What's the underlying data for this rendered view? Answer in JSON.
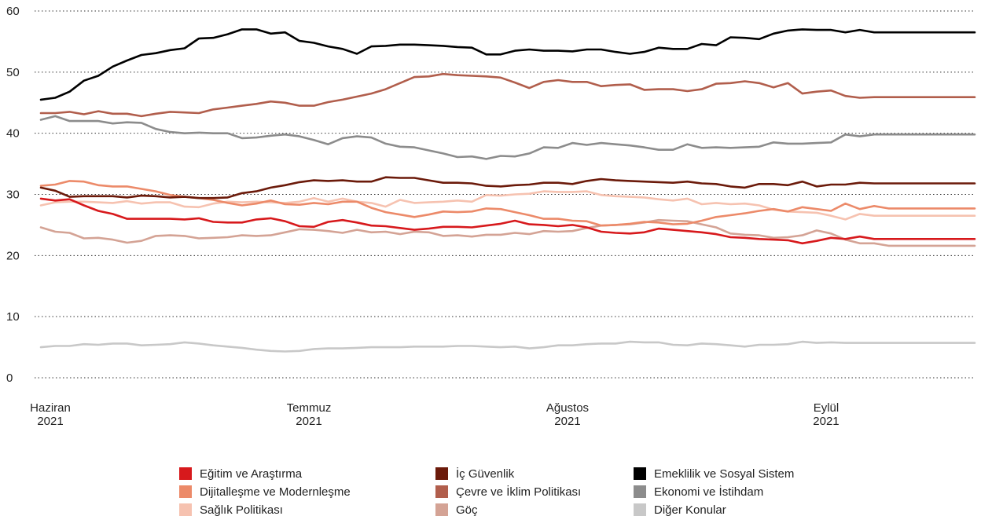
{
  "chart_data": {
    "type": "line",
    "title": "",
    "xlabel": "",
    "ylabel": "",
    "ylim": [
      0,
      60
    ],
    "yticks": [
      0,
      10,
      20,
      30,
      40,
      50,
      60
    ],
    "grid": "horizontal dotted",
    "legend_position": "bottom",
    "x_count": 66,
    "x_tick_labels": [
      {
        "index": 0,
        "line1": "Haziran",
        "line2": "2021"
      },
      {
        "index": 18,
        "line1": "Temmuz",
        "line2": "2021"
      },
      {
        "index": 36,
        "line1": "Ağustos",
        "line2": "2021"
      },
      {
        "index": 54,
        "line1": "Eylül",
        "line2": "2021"
      }
    ],
    "series": [
      {
        "name": "Eğitim ve Araştırma",
        "color": "#d7191c",
        "values": [
          29.3,
          29.0,
          29.2,
          28.2,
          27.3,
          26.8,
          26.0,
          26.0,
          26.0,
          26.0,
          25.9,
          26.1,
          25.5,
          25.4,
          25.4,
          25.9,
          26.1,
          25.6,
          24.8,
          24.7,
          25.5,
          25.8,
          25.4,
          24.9,
          24.8,
          24.5,
          24.2,
          24.4,
          24.7,
          24.7,
          24.6,
          24.9,
          25.2,
          25.7,
          25.1,
          25.0,
          24.8,
          25.0,
          24.6,
          23.9,
          23.7,
          23.6,
          23.8,
          24.4,
          24.2,
          24.0,
          23.8,
          23.5,
          23.0,
          22.9,
          22.7,
          22.6,
          22.5,
          22.0,
          22.4,
          22.9,
          22.7,
          23.1,
          22.7,
          22.7,
          22.7,
          22.7,
          22.7,
          22.7,
          22.7,
          22.7
        ]
      },
      {
        "name": "İç Güvenlik",
        "color": "#6b1a0a",
        "values": [
          31.1,
          30.6,
          29.6,
          29.7,
          29.7,
          29.7,
          29.5,
          29.8,
          29.7,
          29.5,
          29.6,
          29.4,
          29.4,
          29.5,
          30.2,
          30.5,
          31.1,
          31.5,
          32.0,
          32.3,
          32.2,
          32.3,
          32.1,
          32.1,
          32.8,
          32.7,
          32.7,
          32.3,
          31.9,
          31.9,
          31.8,
          31.4,
          31.3,
          31.5,
          31.6,
          31.9,
          31.9,
          31.7,
          32.2,
          32.5,
          32.3,
          32.2,
          32.1,
          32.0,
          31.9,
          32.1,
          31.8,
          31.7,
          31.3,
          31.1,
          31.7,
          31.7,
          31.5,
          32.1,
          31.3,
          31.6,
          31.6,
          31.9,
          31.8,
          31.8,
          31.8,
          31.8,
          31.8,
          31.8,
          31.8,
          31.8
        ]
      },
      {
        "name": "Emeklilik ve Sosyal Sistem",
        "color": "#000000",
        "values": [
          45.5,
          45.8,
          46.8,
          48.6,
          49.4,
          50.9,
          51.9,
          52.8,
          53.1,
          53.6,
          53.9,
          55.5,
          55.6,
          56.2,
          57.0,
          57.0,
          56.3,
          56.5,
          55.1,
          54.8,
          54.2,
          53.8,
          53.0,
          54.2,
          54.3,
          54.5,
          54.5,
          54.4,
          54.3,
          54.1,
          54.0,
          52.9,
          52.9,
          53.5,
          53.7,
          53.5,
          53.5,
          53.4,
          53.7,
          53.7,
          53.3,
          53.0,
          53.3,
          54.0,
          53.8,
          53.8,
          54.6,
          54.4,
          55.7,
          55.6,
          55.4,
          56.3,
          56.8,
          57.0,
          56.9,
          56.9,
          56.5,
          56.9,
          56.5,
          56.5,
          56.5,
          56.5,
          56.5,
          56.5,
          56.5,
          56.5
        ]
      },
      {
        "name": "Dijitalleşme ve Modernleşme",
        "color": "#ec8a69",
        "values": [
          31.4,
          31.6,
          32.2,
          32.1,
          31.5,
          31.3,
          31.3,
          30.9,
          30.5,
          29.9,
          29.6,
          29.4,
          29.1,
          28.6,
          28.2,
          28.5,
          29.0,
          28.4,
          28.3,
          28.6,
          28.4,
          28.8,
          28.8,
          27.8,
          27.1,
          26.7,
          26.3,
          26.7,
          27.2,
          27.1,
          27.2,
          27.7,
          27.6,
          27.1,
          26.6,
          26.0,
          26.0,
          25.7,
          25.6,
          24.9,
          25.0,
          25.2,
          25.5,
          25.4,
          25.1,
          25.2,
          25.7,
          26.3,
          26.6,
          26.9,
          27.3,
          27.6,
          27.2,
          27.9,
          27.6,
          27.3,
          28.5,
          27.6,
          28.1,
          27.7,
          27.7,
          27.7,
          27.7,
          27.7,
          27.7,
          27.7
        ]
      },
      {
        "name": "Çevre ve İklim Politikası",
        "color": "#b15e4c",
        "values": [
          43.3,
          43.3,
          43.5,
          43.1,
          43.6,
          43.2,
          43.2,
          42.8,
          43.2,
          43.5,
          43.4,
          43.3,
          43.9,
          44.2,
          44.5,
          44.8,
          45.2,
          45.0,
          44.5,
          44.5,
          45.1,
          45.5,
          46.0,
          46.5,
          47.2,
          48.2,
          49.2,
          49.3,
          49.7,
          49.5,
          49.4,
          49.3,
          49.1,
          48.3,
          47.4,
          48.4,
          48.7,
          48.4,
          48.4,
          47.7,
          47.9,
          48.0,
          47.1,
          47.2,
          47.2,
          46.9,
          47.2,
          48.1,
          48.2,
          48.5,
          48.2,
          47.5,
          48.2,
          46.5,
          46.8,
          47.0,
          46.1,
          45.8,
          45.9,
          45.9,
          45.9,
          45.9,
          45.9,
          45.9,
          45.9,
          45.9
        ]
      },
      {
        "name": "Ekonomi ve İstihdam",
        "color": "#8c8c8c",
        "values": [
          42.2,
          42.8,
          42.0,
          42.0,
          42.0,
          41.6,
          41.8,
          41.7,
          40.7,
          40.2,
          40.0,
          40.1,
          40.0,
          40.0,
          39.2,
          39.3,
          39.6,
          39.8,
          39.5,
          38.9,
          38.2,
          39.2,
          39.5,
          39.3,
          38.3,
          37.8,
          37.7,
          37.2,
          36.7,
          36.1,
          36.2,
          35.8,
          36.3,
          36.2,
          36.7,
          37.7,
          37.6,
          38.4,
          38.1,
          38.4,
          38.2,
          38.0,
          37.7,
          37.3,
          37.3,
          38.2,
          37.6,
          37.7,
          37.6,
          37.7,
          37.8,
          38.5,
          38.3,
          38.3,
          38.4,
          38.5,
          39.8,
          39.5,
          39.8,
          39.8,
          39.8,
          39.8,
          39.8,
          39.8,
          39.8,
          39.8
        ]
      },
      {
        "name": "Sağlık Politikası",
        "color": "#f6c2b0",
        "values": [
          28.2,
          28.7,
          28.8,
          28.8,
          28.7,
          28.6,
          28.9,
          28.5,
          28.7,
          28.7,
          28.0,
          27.9,
          28.5,
          28.8,
          28.7,
          28.8,
          28.7,
          28.6,
          28.8,
          29.4,
          28.8,
          29.3,
          28.8,
          28.6,
          28.0,
          29.1,
          28.6,
          28.7,
          28.8,
          29.0,
          28.8,
          29.9,
          29.8,
          30.0,
          30.1,
          30.5,
          30.4,
          30.4,
          30.5,
          29.9,
          29.7,
          29.6,
          29.5,
          29.2,
          29.0,
          29.3,
          28.4,
          28.6,
          28.4,
          28.5,
          28.2,
          27.5,
          27.2,
          27.1,
          27.0,
          26.5,
          25.9,
          26.8,
          26.5,
          26.5,
          26.5,
          26.5,
          26.5,
          26.5,
          26.5,
          26.5
        ]
      },
      {
        "name": "Göç",
        "color": "#d4a395",
        "values": [
          24.6,
          23.9,
          23.7,
          22.8,
          22.9,
          22.6,
          22.1,
          22.4,
          23.2,
          23.3,
          23.2,
          22.8,
          22.9,
          23.0,
          23.3,
          23.2,
          23.3,
          23.8,
          24.3,
          24.2,
          24.0,
          23.7,
          24.2,
          23.8,
          23.9,
          23.5,
          23.9,
          23.8,
          23.2,
          23.3,
          23.1,
          23.4,
          23.4,
          23.7,
          23.5,
          24.0,
          23.9,
          24.0,
          24.5,
          24.9,
          25.0,
          25.1,
          25.4,
          25.8,
          25.7,
          25.6,
          25.1,
          24.6,
          23.6,
          23.4,
          23.3,
          22.9,
          23.0,
          23.3,
          24.1,
          23.6,
          22.6,
          22.0,
          22.0,
          21.6,
          21.6,
          21.6,
          21.6,
          21.6,
          21.6,
          21.6
        ]
      },
      {
        "name": "Diğer Konular",
        "color": "#c8c8c8",
        "values": [
          5.0,
          5.2,
          5.2,
          5.5,
          5.4,
          5.6,
          5.6,
          5.3,
          5.4,
          5.5,
          5.8,
          5.6,
          5.3,
          5.1,
          4.9,
          4.6,
          4.4,
          4.3,
          4.4,
          4.7,
          4.8,
          4.8,
          4.9,
          5.0,
          5.0,
          5.0,
          5.1,
          5.1,
          5.1,
          5.2,
          5.2,
          5.1,
          5.0,
          5.1,
          4.8,
          5.0,
          5.3,
          5.3,
          5.5,
          5.6,
          5.6,
          5.9,
          5.8,
          5.8,
          5.4,
          5.3,
          5.6,
          5.5,
          5.3,
          5.1,
          5.4,
          5.4,
          5.5,
          5.9,
          5.7,
          5.8,
          5.7,
          5.7,
          5.7,
          5.7,
          5.7,
          5.7,
          5.7,
          5.7,
          5.7,
          5.7
        ]
      }
    ]
  }
}
